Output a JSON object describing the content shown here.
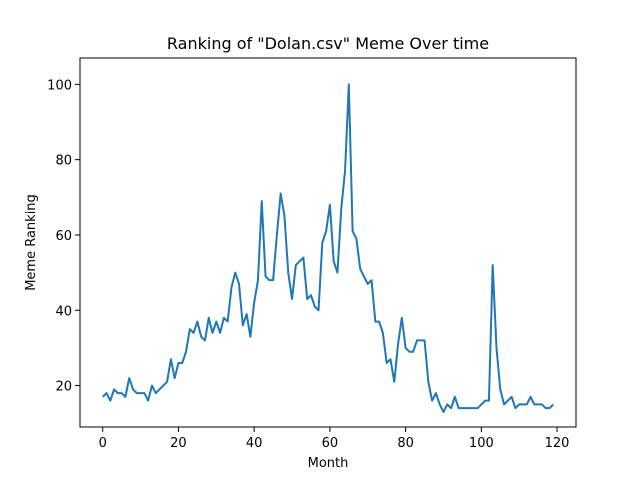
{
  "chart_data": {
    "type": "line",
    "title": "Ranking of \"Dolan.csv\" Meme Over time",
    "xlabel": "Month",
    "ylabel": "Meme Ranking",
    "xlim": [
      -6,
      125
    ],
    "ylim": [
      9,
      107
    ],
    "xticks": [
      0,
      20,
      40,
      60,
      80,
      100,
      120
    ],
    "yticks": [
      20,
      40,
      60,
      80,
      100
    ],
    "grid": false,
    "series": [
      {
        "color": "#1f77b4",
        "x": [
          0,
          1,
          2,
          3,
          4,
          5,
          6,
          7,
          8,
          9,
          10,
          11,
          12,
          13,
          14,
          15,
          16,
          17,
          18,
          19,
          20,
          21,
          22,
          23,
          24,
          25,
          26,
          27,
          28,
          29,
          30,
          31,
          32,
          33,
          34,
          35,
          36,
          37,
          38,
          39,
          40,
          41,
          42,
          43,
          44,
          45,
          46,
          47,
          48,
          49,
          50,
          51,
          52,
          53,
          54,
          55,
          56,
          57,
          58,
          59,
          60,
          61,
          62,
          63,
          64,
          65,
          66,
          67,
          68,
          69,
          70,
          71,
          72,
          73,
          74,
          75,
          76,
          77,
          78,
          79,
          80,
          81,
          82,
          83,
          84,
          85,
          86,
          87,
          88,
          89,
          90,
          91,
          92,
          93,
          94,
          95,
          96,
          97,
          98,
          99,
          100,
          101,
          102,
          103,
          104,
          105,
          106,
          107,
          108,
          109,
          110,
          111,
          112,
          113,
          114,
          115,
          116,
          117,
          118,
          119
        ],
        "values": [
          17,
          18,
          16,
          19,
          18,
          18,
          17,
          22,
          19,
          18,
          18,
          18,
          16,
          20,
          18,
          19,
          20,
          21,
          27,
          22,
          26,
          26,
          29,
          35,
          34,
          37,
          33,
          32,
          38,
          34,
          37,
          34,
          38,
          37,
          46,
          50,
          47,
          36,
          39,
          33,
          42,
          48,
          69,
          49,
          48,
          48,
          60,
          71,
          65,
          50,
          43,
          52,
          53,
          54,
          43,
          44,
          41,
          40,
          58,
          61,
          68,
          53,
          50,
          67,
          77,
          100,
          61,
          59,
          51,
          49,
          47,
          48,
          37,
          37,
          34,
          26,
          27,
          21,
          31,
          38,
          30,
          29,
          29,
          32,
          32,
          32,
          21,
          16,
          18,
          15,
          13,
          15,
          14,
          17,
          14,
          14,
          14,
          14,
          14,
          14,
          15,
          16,
          16,
          52,
          30,
          19,
          15,
          16,
          17,
          14,
          15,
          15,
          15,
          17,
          15,
          15,
          15,
          14,
          14,
          15
        ]
      }
    ]
  }
}
